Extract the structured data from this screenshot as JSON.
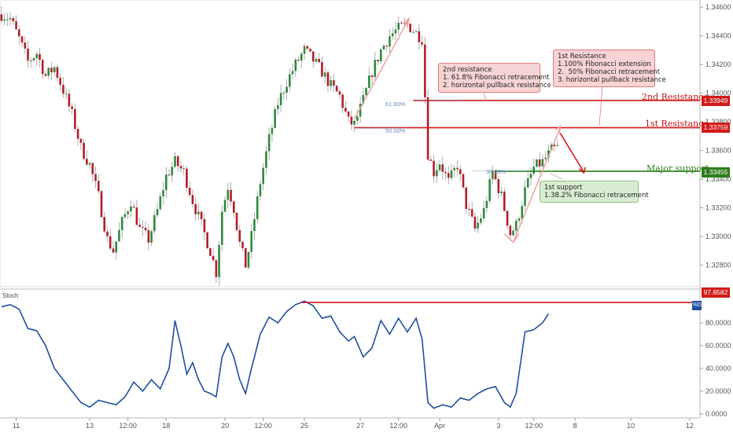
{
  "chart_data": {
    "type": "candlestick",
    "symbol_note": "",
    "price_axis": {
      "ylim": [
        1.3265,
        1.3465
      ],
      "ticks": [
        "1.34600",
        "1.34400",
        "1.34200",
        "1.34000",
        "1.33800",
        "1.33600",
        "1.33400",
        "1.33200",
        "1.33000",
        "1.32800"
      ]
    },
    "x_ticks": [
      {
        "label": "11",
        "idx": 5
      },
      {
        "label": "13",
        "idx": 30
      },
      {
        "label": "12:00",
        "idx": 43
      },
      {
        "label": "18",
        "idx": 56
      },
      {
        "label": "20",
        "idx": 76
      },
      {
        "label": "12:00",
        "idx": 89
      },
      {
        "label": "25",
        "idx": 103
      },
      {
        "label": "27",
        "idx": 122
      },
      {
        "label": "12:00",
        "idx": 135
      },
      {
        "label": "Apr",
        "idx": 149
      },
      {
        "label": "3",
        "idx": 169
      },
      {
        "label": "12:00",
        "idx": 181
      },
      {
        "label": "8",
        "idx": 195
      },
      {
        "label": "10",
        "idx": 214
      },
      {
        "label": "12",
        "idx": 234
      }
    ],
    "last_index": 189,
    "total_slots": 238,
    "anchors": [
      [
        0,
        1.3455
      ],
      [
        3,
        1.3452
      ],
      [
        6,
        1.3438
      ],
      [
        9,
        1.3422
      ],
      [
        12,
        1.3428
      ],
      [
        15,
        1.3412
      ],
      [
        18,
        1.3418
      ],
      [
        21,
        1.3402
      ],
      [
        24,
        1.3385
      ],
      [
        27,
        1.3362
      ],
      [
        30,
        1.335
      ],
      [
        33,
        1.3328
      ],
      [
        36,
        1.3298
      ],
      [
        38,
        1.329
      ],
      [
        41,
        1.331
      ],
      [
        44,
        1.3325
      ],
      [
        47,
        1.3305
      ],
      [
        50,
        1.3298
      ],
      [
        53,
        1.3318
      ],
      [
        56,
        1.3342
      ],
      [
        59,
        1.3352
      ],
      [
        62,
        1.3345
      ],
      [
        65,
        1.3325
      ],
      [
        68,
        1.3308
      ],
      [
        71,
        1.329
      ],
      [
        73,
        1.3275
      ],
      [
        75,
        1.3318
      ],
      [
        77,
        1.3335
      ],
      [
        79,
        1.332
      ],
      [
        81,
        1.3295
      ],
      [
        83,
        1.328
      ],
      [
        85,
        1.33
      ],
      [
        88,
        1.3338
      ],
      [
        91,
        1.3368
      ],
      [
        94,
        1.3393
      ],
      [
        97,
        1.3408
      ],
      [
        100,
        1.342
      ],
      [
        103,
        1.343
      ],
      [
        106,
        1.3423
      ],
      [
        109,
        1.3415
      ],
      [
        112,
        1.3405
      ],
      [
        115,
        1.3398
      ],
      [
        118,
        1.338
      ],
      [
        120,
        1.3378
      ],
      [
        123,
        1.3395
      ],
      [
        126,
        1.3415
      ],
      [
        129,
        1.343
      ],
      [
        132,
        1.344
      ],
      [
        135,
        1.3445
      ],
      [
        138,
        1.3448
      ],
      [
        141,
        1.3442
      ],
      [
        143,
        1.3438
      ],
      [
        145,
        1.3358
      ],
      [
        147,
        1.3345
      ],
      [
        149,
        1.3352
      ],
      [
        152,
        1.3338
      ],
      [
        155,
        1.335
      ],
      [
        158,
        1.3322
      ],
      [
        161,
        1.3305
      ],
      [
        164,
        1.3318
      ],
      [
        167,
        1.3345
      ],
      [
        170,
        1.3328
      ],
      [
        173,
        1.3302
      ],
      [
        175,
        1.3308
      ],
      [
        178,
        1.3332
      ],
      [
        181,
        1.3348
      ],
      [
        184,
        1.3352
      ],
      [
        187,
        1.336
      ],
      [
        189,
        1.3362
      ]
    ],
    "levels": [
      {
        "name": "2nd Resistance",
        "value": 1.33949,
        "label": "1.33949",
        "color": "#d11a1a"
      },
      {
        "name": "1st Resistance",
        "value": 1.33759,
        "label": "1.33759",
        "color": "#d11a1a"
      },
      {
        "name": "Major support",
        "value": 1.33455,
        "label": "1.33455",
        "color": "#2e7d1e"
      }
    ],
    "fib_labels": [
      "61.80%",
      "50.00%",
      "38.20%"
    ],
    "annotations": {
      "second": {
        "title": "2nd resistance",
        "lines": [
          "1. 61.8% Fibonacci retracement",
          "2. horizontal pullback resistance"
        ]
      },
      "first": {
        "title": "1st Resistance",
        "lines": [
          "1.100% Fibonacci extension",
          "2.  50% Fibonacci retracement",
          "3. horizontal pullback resistance"
        ]
      },
      "support": {
        "title": "1st support",
        "lines": [
          "1.38.2% Fibonacci retracement"
        ]
      }
    },
    "stochastic": {
      "title": "Stoch",
      "badge": "%D",
      "ylim": [
        0,
        100
      ],
      "ticks": [
        "80.0000",
        "60.0000",
        "40.0000",
        "20.0000",
        "0.0000"
      ],
      "marker": {
        "value": 97.8582,
        "label": "97.8582"
      },
      "anchors": [
        [
          0,
          94
        ],
        [
          3,
          96
        ],
        [
          6,
          92
        ],
        [
          9,
          75
        ],
        [
          12,
          73
        ],
        [
          15,
          60
        ],
        [
          18,
          40
        ],
        [
          21,
          30
        ],
        [
          24,
          20
        ],
        [
          27,
          10
        ],
        [
          30,
          6
        ],
        [
          33,
          12
        ],
        [
          36,
          10
        ],
        [
          39,
          8
        ],
        [
          42,
          15
        ],
        [
          45,
          28
        ],
        [
          48,
          20
        ],
        [
          51,
          30
        ],
        [
          54,
          22
        ],
        [
          57,
          40
        ],
        [
          59,
          82
        ],
        [
          61,
          60
        ],
        [
          63,
          35
        ],
        [
          65,
          45
        ],
        [
          67,
          30
        ],
        [
          69,
          20
        ],
        [
          71,
          18
        ],
        [
          73,
          15
        ],
        [
          75,
          50
        ],
        [
          77,
          62
        ],
        [
          79,
          50
        ],
        [
          81,
          30
        ],
        [
          83,
          18
        ],
        [
          85,
          40
        ],
        [
          88,
          70
        ],
        [
          91,
          85
        ],
        [
          94,
          80
        ],
        [
          97,
          90
        ],
        [
          100,
          96
        ],
        [
          103,
          99
        ],
        [
          106,
          95
        ],
        [
          109,
          84
        ],
        [
          112,
          86
        ],
        [
          115,
          72
        ],
        [
          118,
          64
        ],
        [
          120,
          68
        ],
        [
          123,
          50
        ],
        [
          126,
          58
        ],
        [
          129,
          82
        ],
        [
          132,
          70
        ],
        [
          135,
          84
        ],
        [
          138,
          72
        ],
        [
          141,
          84
        ],
        [
          143,
          66
        ],
        [
          145,
          10
        ],
        [
          147,
          5
        ],
        [
          150,
          8
        ],
        [
          153,
          6
        ],
        [
          156,
          14
        ],
        [
          159,
          12
        ],
        [
          162,
          18
        ],
        [
          165,
          22
        ],
        [
          168,
          24
        ],
        [
          171,
          10
        ],
        [
          173,
          6
        ],
        [
          175,
          18
        ],
        [
          178,
          72
        ],
        [
          181,
          74
        ],
        [
          184,
          80
        ],
        [
          186,
          88
        ]
      ]
    }
  }
}
